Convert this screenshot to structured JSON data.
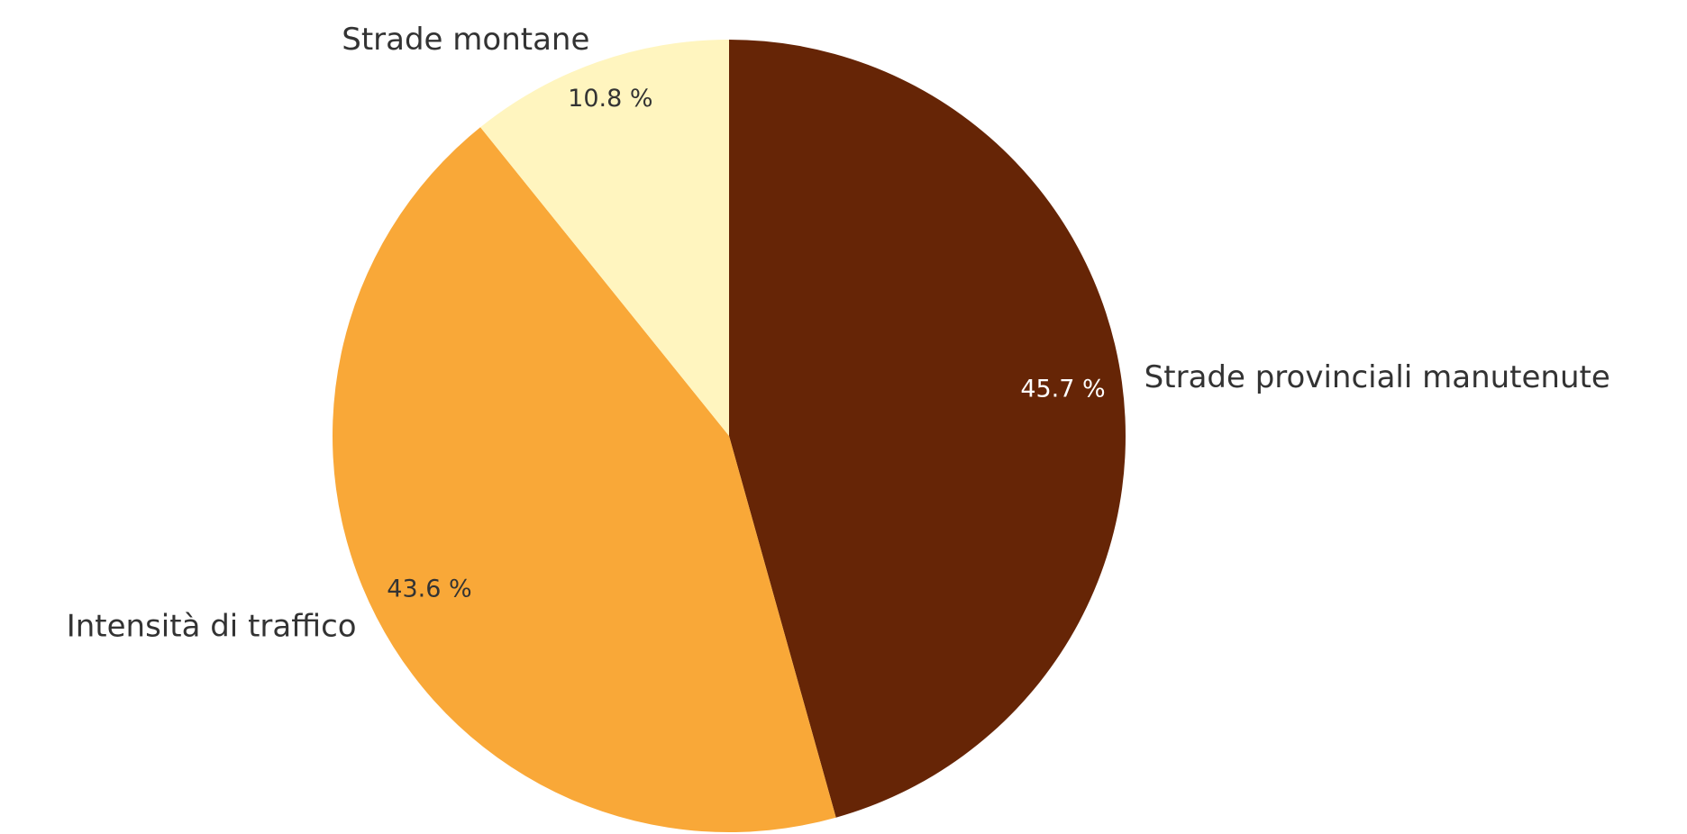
{
  "chart_data": {
    "type": "pie",
    "categories": [
      "Strade provinciali manutenute",
      "Intensità di traffico",
      "Strade montane"
    ],
    "values": [
      45.7,
      43.6,
      10.8
    ],
    "value_labels": [
      "45.7 %",
      "43.6 %",
      "10.8 %"
    ],
    "colors": [
      "#662506",
      "#f9a838",
      "#fff5bf"
    ]
  }
}
